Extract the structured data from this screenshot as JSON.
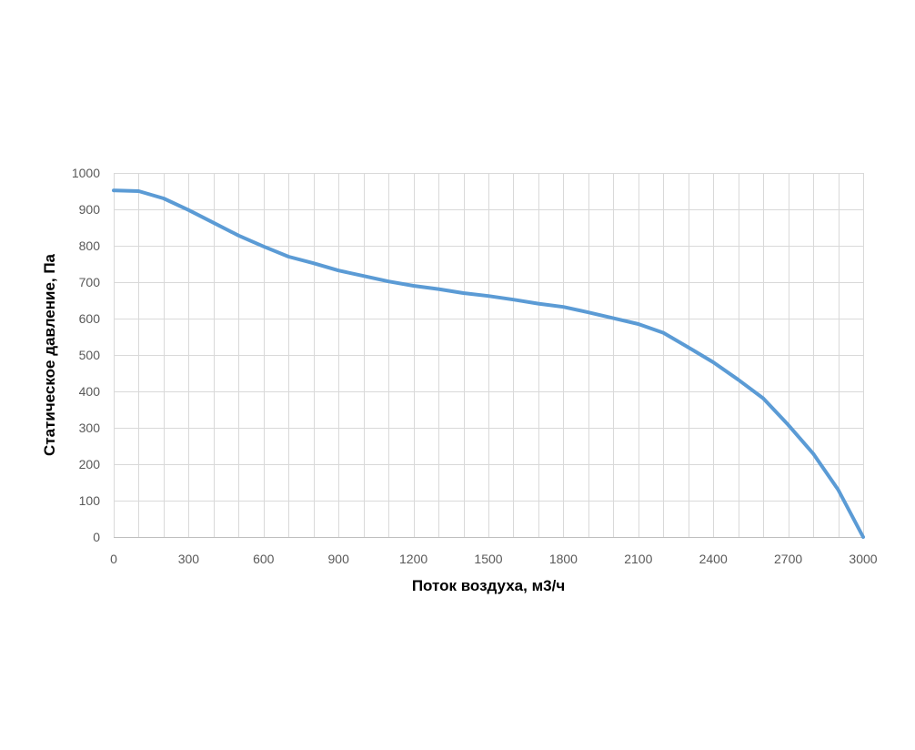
{
  "chart_data": {
    "type": "line",
    "xlabel": "Поток воздуха, м3/ч",
    "ylabel": "Статическое давление, Па",
    "xlim": [
      0,
      3000
    ],
    "ylim": [
      0,
      1000
    ],
    "x_ticks": [
      0,
      300,
      600,
      900,
      1200,
      1500,
      1800,
      2100,
      2400,
      2700,
      3000
    ],
    "y_ticks": [
      0,
      100,
      200,
      300,
      400,
      500,
      600,
      700,
      800,
      900,
      1000
    ],
    "x_minor_step": 100,
    "grid": true,
    "legend": "none",
    "series": [
      {
        "color": "#5b9bd5",
        "x": [
          0,
          100,
          200,
          300,
          400,
          500,
          600,
          700,
          800,
          900,
          1000,
          1100,
          1200,
          1300,
          1400,
          1500,
          1600,
          1700,
          1800,
          1900,
          2000,
          2100,
          2200,
          2300,
          2400,
          2500,
          2600,
          2700,
          2800,
          2900,
          3000
        ],
        "y": [
          952,
          950,
          930,
          898,
          863,
          828,
          798,
          770,
          752,
          732,
          717,
          702,
          690,
          681,
          670,
          662,
          652,
          641,
          632,
          617,
          601,
          585,
          561,
          521,
          480,
          432,
          381,
          308,
          229,
          130,
          0
        ]
      }
    ]
  }
}
